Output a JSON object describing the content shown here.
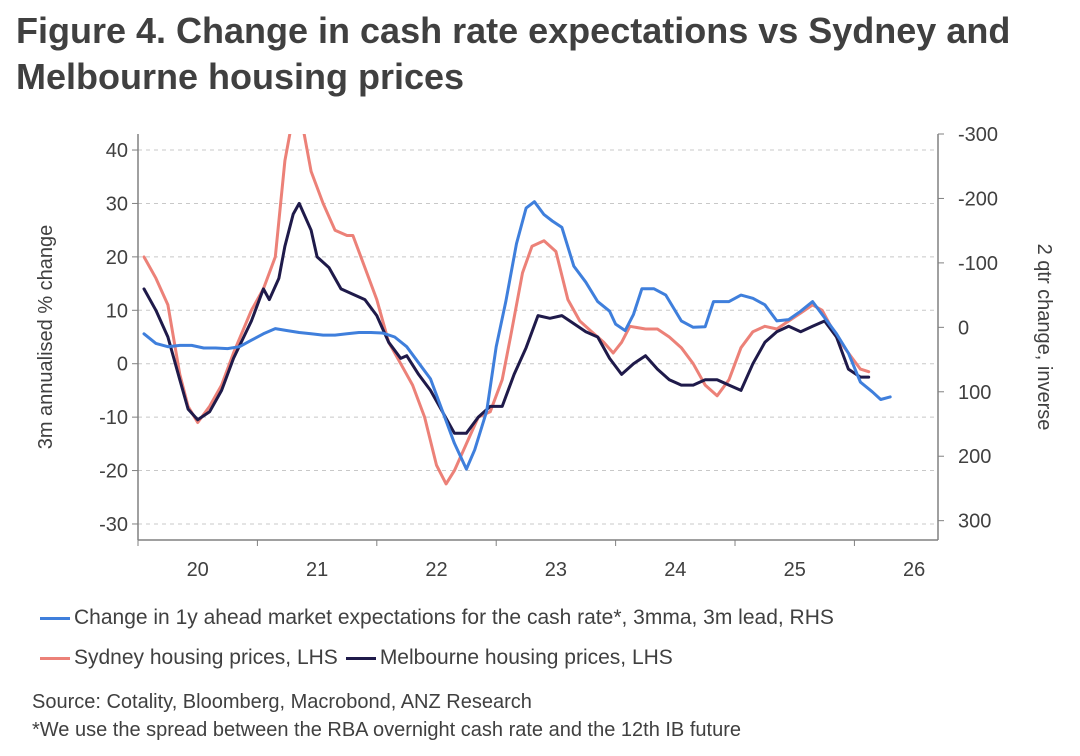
{
  "title": "Figure 4. Change in cash rate expectations vs Sydney and Melbourne housing prices",
  "legend": {
    "blue": "Change in 1y ahead market expectations for the cash rate*, 3mma, 3m lead, RHS",
    "red": "Sydney housing prices, LHS",
    "navy": "Melbourne housing prices, LHS"
  },
  "source": "Source: Cotality, Bloomberg, Macrobond, ANZ Research",
  "footnote": "*We use the spread between the RBA overnight cash rate and the 12th IB future",
  "colors": {
    "blue": "#3f7fdc",
    "red": "#ec8178",
    "navy": "#1f1a4a"
  },
  "chart_data": {
    "type": "line",
    "ylabel": "3m annualised % change",
    "y2label": "2 qtr change, inverse",
    "ylim": [
      -33,
      43
    ],
    "yticks": [
      40,
      30,
      20,
      10,
      0,
      -10,
      -20,
      -30
    ],
    "y2lim": [
      330,
      -300
    ],
    "y2_inverted": true,
    "y2ticks": [
      -300,
      -200,
      -100,
      0,
      100,
      200,
      300
    ],
    "y2ticklabels": [
      "-300",
      "-200",
      "-100",
      "0",
      "100",
      "200",
      "300"
    ],
    "xlim": [
      19.5,
      26.2
    ],
    "xticks": [
      20,
      21,
      22,
      23,
      24,
      25,
      26
    ],
    "xticklabels": [
      "20",
      "21",
      "22",
      "23",
      "24",
      "25",
      "26"
    ],
    "grid": true,
    "series": [
      {
        "name": "Sydney housing prices, LHS",
        "axis": "left",
        "color": "#ec8178",
        "points": [
          [
            19.55,
            20
          ],
          [
            19.65,
            16
          ],
          [
            19.75,
            11
          ],
          [
            19.85,
            -2
          ],
          [
            19.92,
            -8
          ],
          [
            20.0,
            -11
          ],
          [
            20.1,
            -8
          ],
          [
            20.2,
            -4
          ],
          [
            20.3,
            2
          ],
          [
            20.45,
            10
          ],
          [
            20.55,
            14
          ],
          [
            20.65,
            20
          ],
          [
            20.73,
            38
          ],
          [
            20.78,
            44
          ],
          [
            20.85,
            48
          ],
          [
            20.95,
            36
          ],
          [
            21.05,
            30
          ],
          [
            21.15,
            25
          ],
          [
            21.25,
            24
          ],
          [
            21.3,
            24
          ],
          [
            21.4,
            18
          ],
          [
            21.5,
            12
          ],
          [
            21.6,
            4
          ],
          [
            21.7,
            0
          ],
          [
            21.8,
            -4
          ],
          [
            21.9,
            -10
          ],
          [
            22.0,
            -19
          ],
          [
            22.08,
            -22.5
          ],
          [
            22.15,
            -20
          ],
          [
            22.25,
            -15
          ],
          [
            22.35,
            -10
          ],
          [
            22.45,
            -9
          ],
          [
            22.55,
            -3
          ],
          [
            22.62,
            5
          ],
          [
            22.72,
            17
          ],
          [
            22.8,
            22
          ],
          [
            22.9,
            23
          ],
          [
            23.0,
            21
          ],
          [
            23.1,
            12
          ],
          [
            23.2,
            8
          ],
          [
            23.3,
            6
          ],
          [
            23.4,
            4
          ],
          [
            23.48,
            2
          ],
          [
            23.55,
            4
          ],
          [
            23.62,
            7
          ],
          [
            23.75,
            6.5
          ],
          [
            23.85,
            6.5
          ],
          [
            23.95,
            5
          ],
          [
            24.05,
            3
          ],
          [
            24.15,
            0
          ],
          [
            24.25,
            -4
          ],
          [
            24.35,
            -6
          ],
          [
            24.45,
            -3
          ],
          [
            24.55,
            3
          ],
          [
            24.65,
            6
          ],
          [
            24.75,
            7
          ],
          [
            24.85,
            6.5
          ],
          [
            24.95,
            8
          ],
          [
            25.05,
            9.5
          ],
          [
            25.15,
            11
          ],
          [
            25.23,
            10
          ],
          [
            25.35,
            5
          ],
          [
            25.45,
            2
          ],
          [
            25.55,
            -1
          ],
          [
            25.62,
            -1.5
          ]
        ]
      },
      {
        "name": "Melbourne housing prices, LHS",
        "axis": "left",
        "color": "#1f1a4a",
        "points": [
          [
            19.55,
            14
          ],
          [
            19.65,
            10
          ],
          [
            19.75,
            5
          ],
          [
            19.85,
            -3
          ],
          [
            19.92,
            -8.5
          ],
          [
            20.0,
            -10.5
          ],
          [
            20.1,
            -9
          ],
          [
            20.2,
            -5
          ],
          [
            20.3,
            1
          ],
          [
            20.45,
            8
          ],
          [
            20.55,
            14
          ],
          [
            20.6,
            12
          ],
          [
            20.68,
            16
          ],
          [
            20.73,
            22
          ],
          [
            20.8,
            28
          ],
          [
            20.85,
            30
          ],
          [
            20.95,
            25
          ],
          [
            21.0,
            20
          ],
          [
            21.1,
            18
          ],
          [
            21.2,
            14
          ],
          [
            21.3,
            13
          ],
          [
            21.4,
            12
          ],
          [
            21.5,
            9
          ],
          [
            21.6,
            4
          ],
          [
            21.7,
            1
          ],
          [
            21.75,
            1.5
          ],
          [
            21.85,
            -2
          ],
          [
            21.95,
            -5
          ],
          [
            22.05,
            -9
          ],
          [
            22.15,
            -13
          ],
          [
            22.25,
            -13
          ],
          [
            22.35,
            -10
          ],
          [
            22.45,
            -8
          ],
          [
            22.55,
            -8
          ],
          [
            22.65,
            -2
          ],
          [
            22.75,
            3
          ],
          [
            22.85,
            9
          ],
          [
            22.95,
            8.5
          ],
          [
            23.05,
            9
          ],
          [
            23.15,
            7.5
          ],
          [
            23.25,
            6
          ],
          [
            23.35,
            5
          ],
          [
            23.45,
            1
          ],
          [
            23.55,
            -2
          ],
          [
            23.65,
            0
          ],
          [
            23.75,
            1.5
          ],
          [
            23.85,
            -1
          ],
          [
            23.95,
            -3
          ],
          [
            24.05,
            -4
          ],
          [
            24.15,
            -4
          ],
          [
            24.25,
            -3
          ],
          [
            24.35,
            -3
          ],
          [
            24.45,
            -4
          ],
          [
            24.55,
            -5
          ],
          [
            24.65,
            0
          ],
          [
            24.75,
            4
          ],
          [
            24.85,
            6
          ],
          [
            24.95,
            7
          ],
          [
            25.05,
            6
          ],
          [
            25.15,
            7
          ],
          [
            25.25,
            8
          ],
          [
            25.35,
            5
          ],
          [
            25.45,
            -1
          ],
          [
            25.55,
            -2.5
          ],
          [
            25.62,
            -2.5
          ]
        ]
      },
      {
        "name": "Change in 1y ahead market expectations for the cash rate*, 3mma, 3m lead, RHS",
        "axis": "right",
        "color": "#3f7fdc",
        "points": [
          [
            19.55,
            10
          ],
          [
            19.65,
            25
          ],
          [
            19.75,
            30
          ],
          [
            19.85,
            28
          ],
          [
            19.95,
            28
          ],
          [
            20.05,
            32
          ],
          [
            20.15,
            32
          ],
          [
            20.25,
            33
          ],
          [
            20.35,
            30
          ],
          [
            20.45,
            20
          ],
          [
            20.55,
            10
          ],
          [
            20.65,
            2
          ],
          [
            20.75,
            5
          ],
          [
            20.85,
            8
          ],
          [
            20.95,
            10
          ],
          [
            21.05,
            12
          ],
          [
            21.15,
            12
          ],
          [
            21.25,
            10
          ],
          [
            21.35,
            8
          ],
          [
            21.45,
            8
          ],
          [
            21.55,
            9
          ],
          [
            21.65,
            15
          ],
          [
            21.75,
            30
          ],
          [
            21.85,
            55
          ],
          [
            21.95,
            80
          ],
          [
            22.05,
            130
          ],
          [
            22.15,
            180
          ],
          [
            22.25,
            220
          ],
          [
            22.32,
            190
          ],
          [
            22.42,
            130
          ],
          [
            22.5,
            30
          ],
          [
            22.58,
            -40
          ],
          [
            22.67,
            -130
          ],
          [
            22.75,
            -185
          ],
          [
            22.82,
            -195
          ],
          [
            22.9,
            -175
          ],
          [
            22.97,
            -165
          ],
          [
            23.05,
            -155
          ],
          [
            23.15,
            -95
          ],
          [
            23.25,
            -70
          ],
          [
            23.35,
            -40
          ],
          [
            23.45,
            -25
          ],
          [
            23.5,
            -5
          ],
          [
            23.58,
            5
          ],
          [
            23.65,
            -20
          ],
          [
            23.72,
            -60
          ],
          [
            23.82,
            -60
          ],
          [
            23.92,
            -50
          ],
          [
            24.05,
            -10
          ],
          [
            24.15,
            0
          ],
          [
            24.25,
            -1
          ],
          [
            24.32,
            -40
          ],
          [
            24.45,
            -40
          ],
          [
            24.55,
            -50
          ],
          [
            24.65,
            -45
          ],
          [
            24.75,
            -35
          ],
          [
            24.85,
            -10
          ],
          [
            24.95,
            -12
          ],
          [
            25.05,
            -25
          ],
          [
            25.15,
            -40
          ],
          [
            25.25,
            -15
          ],
          [
            25.35,
            10
          ],
          [
            25.45,
            40
          ],
          [
            25.55,
            85
          ],
          [
            25.65,
            100
          ],
          [
            25.72,
            112
          ],
          [
            25.8,
            108
          ]
        ]
      }
    ]
  }
}
